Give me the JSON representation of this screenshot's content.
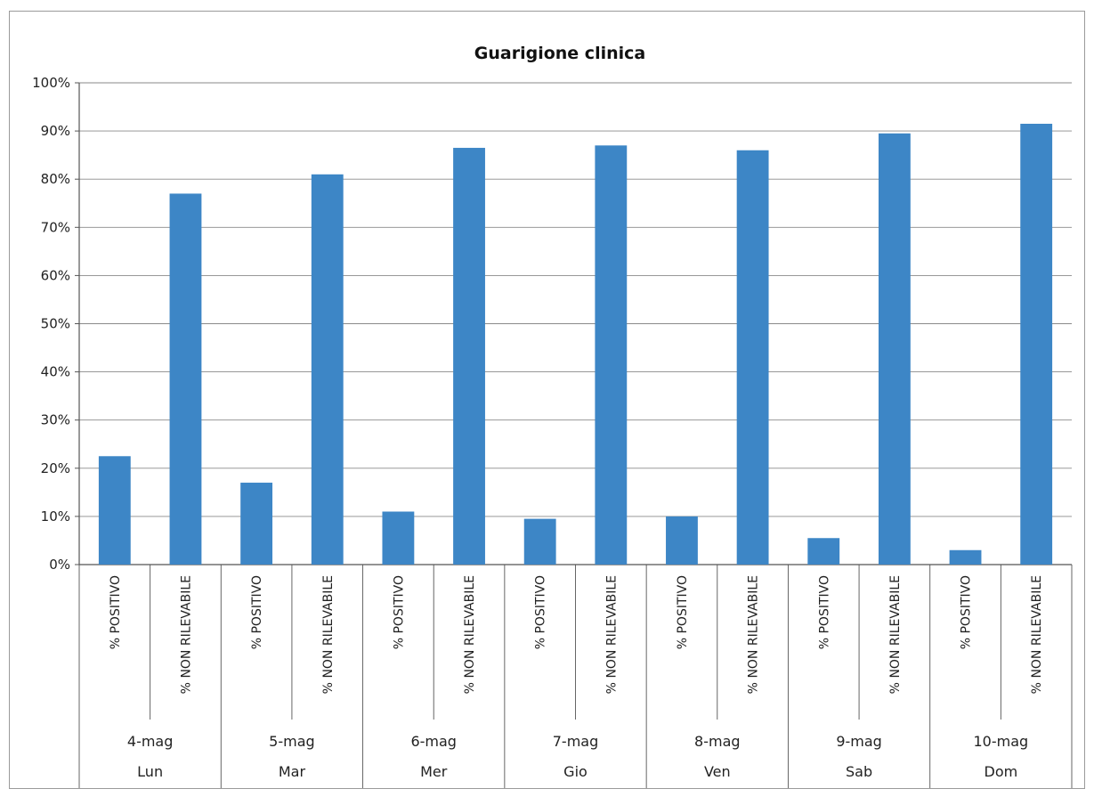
{
  "chart_data": {
    "type": "bar",
    "title": "Guarigione clinica",
    "xlabel": "",
    "ylabel": "",
    "ylim": [
      0,
      1
    ],
    "yticks": [
      "0%",
      "10%",
      "20%",
      "30%",
      "40%",
      "50%",
      "60%",
      "70%",
      "80%",
      "90%",
      "100%"
    ],
    "grid": true,
    "legend": "none",
    "bar_color": "#3d86c6",
    "groups": [
      {
        "date": "4-mag",
        "day": "Lun"
      },
      {
        "date": "5-mag",
        "day": "Mar"
      },
      {
        "date": "6-mag",
        "day": "Mer"
      },
      {
        "date": "7-mag",
        "day": "Gio"
      },
      {
        "date": "8-mag",
        "day": "Ven"
      },
      {
        "date": "9-mag",
        "day": "Sab"
      },
      {
        "date": "10-mag",
        "day": "Dom"
      }
    ],
    "categories": [
      "% POSITIVO",
      "% NON RILEVABILE"
    ],
    "values": [
      [
        0.225,
        0.77
      ],
      [
        0.17,
        0.81
      ],
      [
        0.11,
        0.865
      ],
      [
        0.095,
        0.87
      ],
      [
        0.1,
        0.86
      ],
      [
        0.055,
        0.895
      ],
      [
        0.03,
        0.915
      ]
    ]
  }
}
